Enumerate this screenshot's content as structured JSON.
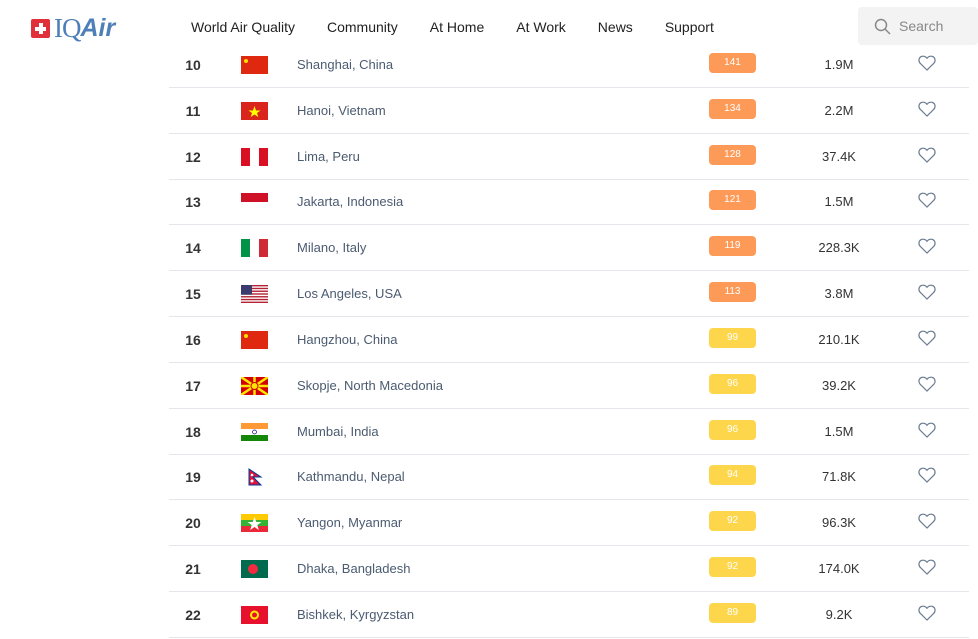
{
  "header": {
    "logo": "IQAir",
    "nav": [
      "World Air Quality",
      "Community",
      "At Home",
      "At Work",
      "News",
      "Support"
    ],
    "search_placeholder": "Search"
  },
  "colors": {
    "orange": "#fd9a57",
    "yellow": "#fdd64b"
  },
  "rows": [
    {
      "rank": "10",
      "flag": "china",
      "city": "Shanghai, China",
      "aqi": "141",
      "level": "orange",
      "population": "1.9M"
    },
    {
      "rank": "11",
      "flag": "vietnam",
      "city": "Hanoi, Vietnam",
      "aqi": "134",
      "level": "orange",
      "population": "2.2M"
    },
    {
      "rank": "12",
      "flag": "peru",
      "city": "Lima, Peru",
      "aqi": "128",
      "level": "orange",
      "population": "37.4K"
    },
    {
      "rank": "13",
      "flag": "indonesia",
      "city": "Jakarta, Indonesia",
      "aqi": "121",
      "level": "orange",
      "population": "1.5M"
    },
    {
      "rank": "14",
      "flag": "italy",
      "city": "Milano, Italy",
      "aqi": "119",
      "level": "orange",
      "population": "228.3K"
    },
    {
      "rank": "15",
      "flag": "usa",
      "city": "Los Angeles, USA",
      "aqi": "113",
      "level": "orange",
      "population": "3.8M"
    },
    {
      "rank": "16",
      "flag": "china",
      "city": "Hangzhou, China",
      "aqi": "99",
      "level": "yellow",
      "population": "210.1K"
    },
    {
      "rank": "17",
      "flag": "north-macedonia",
      "city": "Skopje, North Macedonia",
      "aqi": "96",
      "level": "yellow",
      "population": "39.2K"
    },
    {
      "rank": "18",
      "flag": "india",
      "city": "Mumbai, India",
      "aqi": "96",
      "level": "yellow",
      "population": "1.5M"
    },
    {
      "rank": "19",
      "flag": "nepal",
      "city": "Kathmandu, Nepal",
      "aqi": "94",
      "level": "yellow",
      "population": "71.8K"
    },
    {
      "rank": "20",
      "flag": "myanmar",
      "city": "Yangon, Myanmar",
      "aqi": "92",
      "level": "yellow",
      "population": "96.3K"
    },
    {
      "rank": "21",
      "flag": "bangladesh",
      "city": "Dhaka, Bangladesh",
      "aqi": "92",
      "level": "yellow",
      "population": "174.0K"
    },
    {
      "rank": "22",
      "flag": "kyrgyzstan",
      "city": "Bishkek, Kyrgyzstan",
      "aqi": "89",
      "level": "yellow",
      "population": "9.2K"
    }
  ]
}
